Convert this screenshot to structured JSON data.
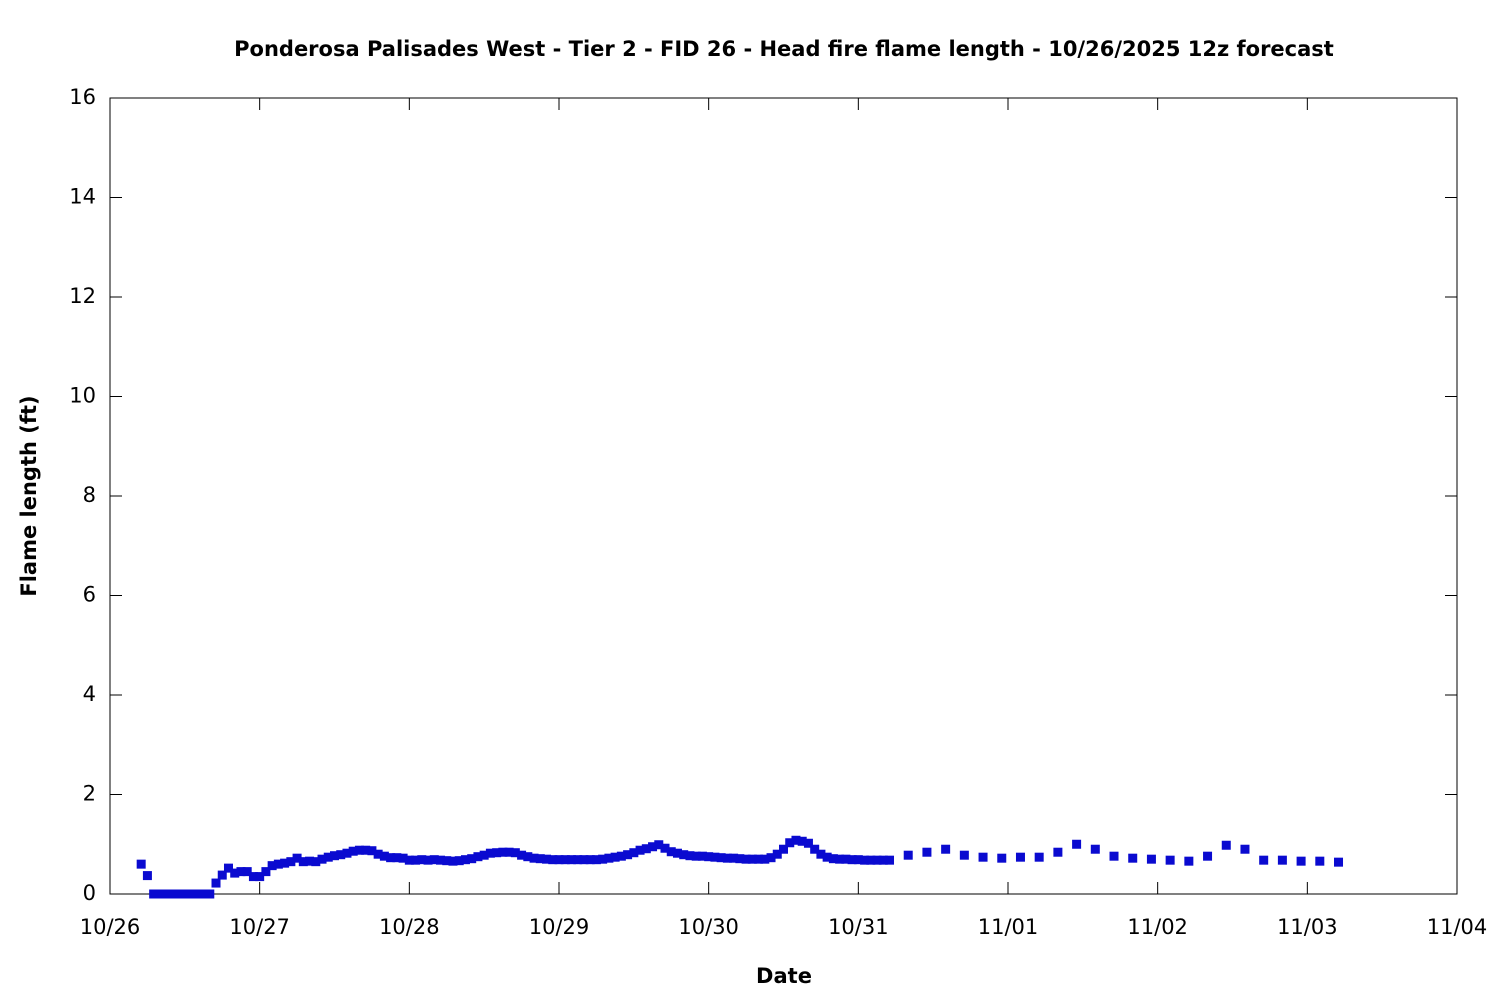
{
  "chart_data": {
    "type": "scatter",
    "title": "Ponderosa Palisades West - Tier 2 - FID 26 - Head fire flame length - 10/26/2025 12z forecast",
    "x_label": "Date",
    "y_label": "Flame length (ft)",
    "xlim": [
      0,
      216
    ],
    "ylim": [
      0,
      16
    ],
    "xticks": [
      {
        "value": 0,
        "label": "10/26"
      },
      {
        "value": 24,
        "label": "10/27"
      },
      {
        "value": 48,
        "label": "10/28"
      },
      {
        "value": 72,
        "label": "10/29"
      },
      {
        "value": 96,
        "label": "10/30"
      },
      {
        "value": 120,
        "label": "10/31"
      },
      {
        "value": 144,
        "label": "11/01"
      },
      {
        "value": 168,
        "label": "11/02"
      },
      {
        "value": 192,
        "label": "11/03"
      },
      {
        "value": 216,
        "label": "11/04"
      }
    ],
    "yticks": [
      0,
      2,
      4,
      6,
      8,
      10,
      12,
      14,
      16
    ],
    "color": "#0a0ad0",
    "x": [
      5,
      6,
      7,
      8,
      9,
      10,
      11,
      12,
      13,
      14,
      15,
      16,
      17,
      18,
      19,
      20,
      21,
      22,
      23,
      24,
      25,
      26,
      27,
      28,
      29,
      30,
      31,
      32,
      33,
      34,
      35,
      36,
      37,
      38,
      39,
      40,
      41,
      42,
      43,
      44,
      45,
      46,
      47,
      48,
      49,
      50,
      51,
      52,
      53,
      54,
      55,
      56,
      57,
      58,
      59,
      60,
      61,
      62,
      63,
      64,
      65,
      66,
      67,
      68,
      69,
      70,
      71,
      72,
      73,
      74,
      75,
      76,
      77,
      78,
      79,
      80,
      81,
      82,
      83,
      84,
      85,
      86,
      87,
      88,
      89,
      90,
      91,
      92,
      93,
      94,
      95,
      96,
      97,
      98,
      99,
      100,
      101,
      102,
      103,
      104,
      105,
      106,
      107,
      108,
      109,
      110,
      111,
      112,
      113,
      114,
      115,
      116,
      117,
      118,
      119,
      120,
      121,
      122,
      123,
      124,
      125,
      128,
      131,
      134,
      137,
      140,
      143,
      146,
      149,
      152,
      155,
      158,
      161,
      164,
      167,
      170,
      173,
      176,
      179,
      182,
      185,
      188,
      191,
      194,
      197
    ],
    "values": [
      0.6,
      0.37,
      0,
      0,
      0,
      0,
      0,
      0,
      0,
      0,
      0,
      0,
      0.22,
      0.38,
      0.52,
      0.42,
      0.45,
      0.45,
      0.35,
      0.35,
      0.45,
      0.57,
      0.6,
      0.62,
      0.65,
      0.72,
      0.65,
      0.66,
      0.65,
      0.7,
      0.74,
      0.77,
      0.79,
      0.82,
      0.86,
      0.88,
      0.88,
      0.87,
      0.8,
      0.76,
      0.73,
      0.73,
      0.72,
      0.68,
      0.68,
      0.69,
      0.68,
      0.69,
      0.68,
      0.67,
      0.66,
      0.67,
      0.69,
      0.71,
      0.75,
      0.78,
      0.82,
      0.83,
      0.84,
      0.84,
      0.83,
      0.78,
      0.75,
      0.72,
      0.71,
      0.7,
      0.69,
      0.69,
      0.69,
      0.69,
      0.69,
      0.69,
      0.69,
      0.69,
      0.7,
      0.72,
      0.74,
      0.76,
      0.79,
      0.83,
      0.88,
      0.91,
      0.95,
      0.99,
      0.92,
      0.85,
      0.82,
      0.79,
      0.77,
      0.76,
      0.76,
      0.75,
      0.74,
      0.73,
      0.72,
      0.72,
      0.71,
      0.7,
      0.7,
      0.7,
      0.7,
      0.73,
      0.8,
      0.9,
      1.03,
      1.08,
      1.06,
      1.02,
      0.9,
      0.8,
      0.74,
      0.71,
      0.7,
      0.7,
      0.69,
      0.69,
      0.68,
      0.68,
      0.68,
      0.68,
      0.68,
      0.78,
      0.84,
      0.9,
      0.78,
      0.74,
      0.72,
      0.74,
      0.74,
      0.84,
      1.0,
      0.9,
      0.76,
      0.72,
      0.7,
      0.68,
      0.66,
      0.76,
      0.98,
      0.9,
      0.68,
      0.68,
      0.66,
      0.66,
      0.64
    ]
  }
}
